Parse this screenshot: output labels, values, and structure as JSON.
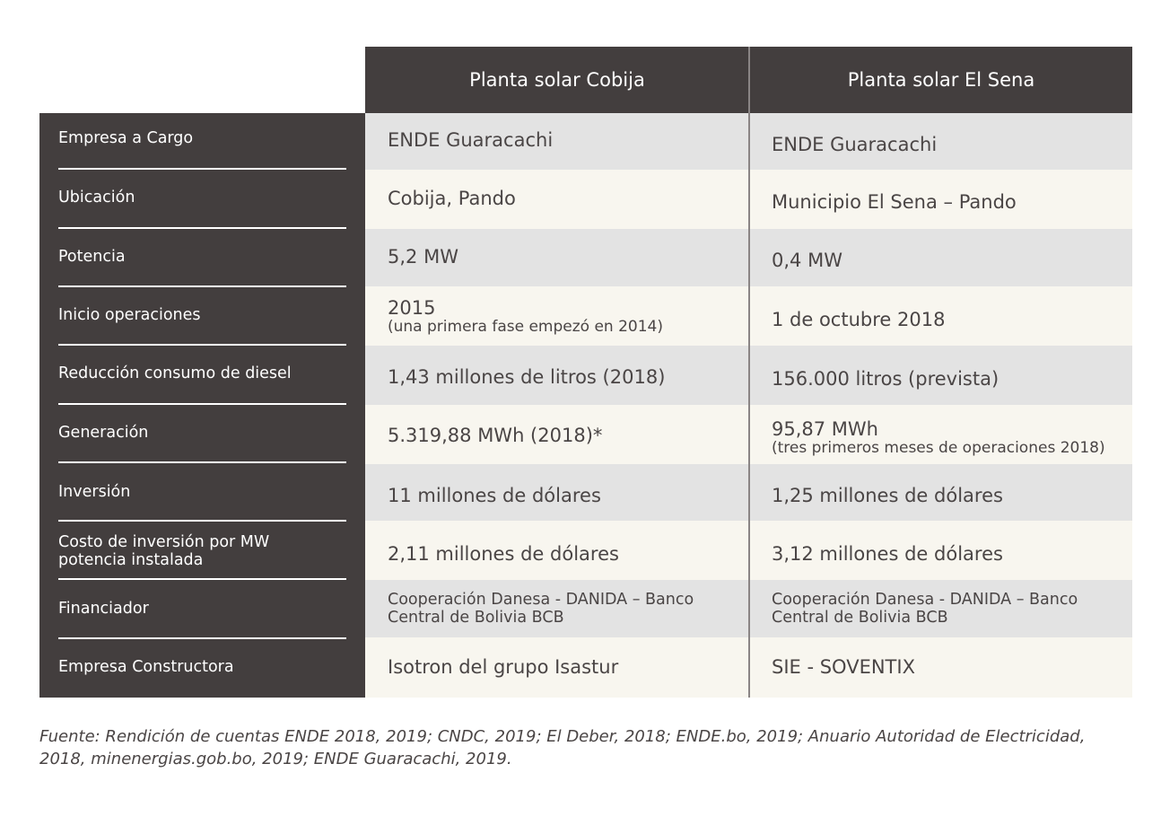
{
  "header": {
    "col1": "Planta solar Cobija",
    "col2": "Planta solar El Sena"
  },
  "rows": [
    {
      "label": "Empresa a Cargo",
      "cobija": "ENDE Guaracachi",
      "cobija_sub": "",
      "sena": "ENDE Guaracachi",
      "sena_sub": ""
    },
    {
      "label": "Ubicación",
      "cobija": "Cobija, Pando",
      "cobija_sub": "",
      "sena": "Municipio El Sena – Pando",
      "sena_sub": ""
    },
    {
      "label": "Potencia",
      "cobija": "5,2 MW",
      "cobija_sub": "",
      "sena": "0,4 MW",
      "sena_sub": ""
    },
    {
      "label": "Inicio operaciones",
      "cobija": "2015",
      "cobija_sub": "(una primera fase empezó en 2014)",
      "sena": "1 de octubre 2018",
      "sena_sub": ""
    },
    {
      "label": "Reducción consumo de diesel",
      "cobija": "1,43 millones de litros (2018)",
      "cobija_sub": "",
      "sena": "156.000 litros (prevista)",
      "sena_sub": ""
    },
    {
      "label": "Generación",
      "cobija": "5.319,88 MWh (2018)*",
      "cobija_sub": "",
      "sena": "95,87 MWh",
      "sena_sub": "(tres primeros meses de operaciones 2018)"
    },
    {
      "label": "Inversión",
      "cobija": "11 millones de dólares",
      "cobija_sub": "",
      "sena": "1,25 millones de dólares",
      "sena_sub": ""
    },
    {
      "label": "Costo de inversión por MW potencia instalada",
      "cobija": "2,11 millones de dólares",
      "cobija_sub": "",
      "sena": "3,12 millones de dólares",
      "sena_sub": ""
    },
    {
      "label": "Financiador",
      "cobija": "Cooperación Danesa - DANIDA – Banco Central de Bolivia BCB",
      "cobija_sub": "",
      "sena": "Cooperación Danesa - DANIDA – Banco Central de Bolivia BCB",
      "sena_sub": ""
    },
    {
      "label": "Empresa Constructora",
      "cobija": "Isotron del grupo Isastur",
      "cobija_sub": "",
      "sena": "SIE - SOVENTIX",
      "sena_sub": ""
    }
  ],
  "source": "Fuente: Rendición de cuentas ENDE 2018, 2019; CNDC, 2019; El Deber, 2018; ENDE.bo, 2019; Anuario Autoridad de Electricidad, 2018, minenergias.gob.bo, 2019; ENDE Guaracachi, 2019."
}
